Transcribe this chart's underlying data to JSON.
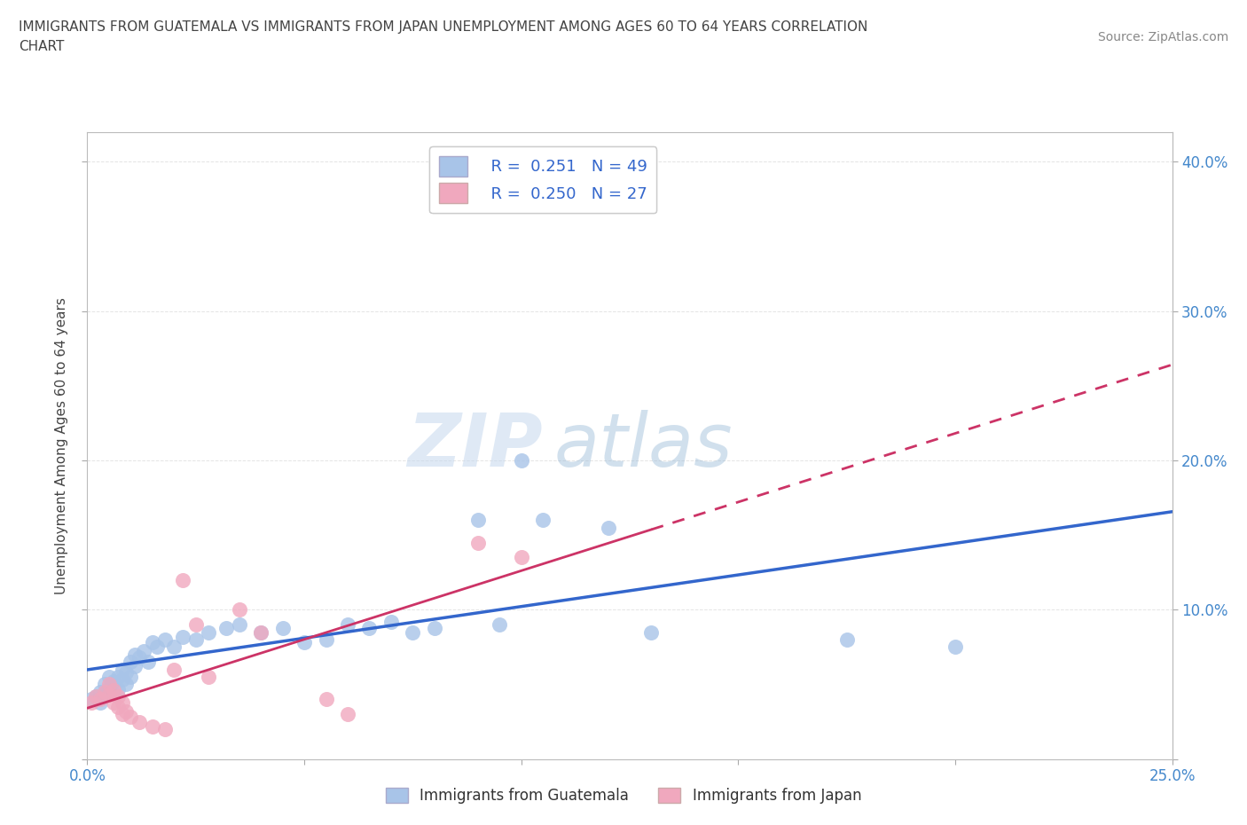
{
  "title_line1": "IMMIGRANTS FROM GUATEMALA VS IMMIGRANTS FROM JAPAN UNEMPLOYMENT AMONG AGES 60 TO 64 YEARS CORRELATION",
  "title_line2": "CHART",
  "source": "Source: ZipAtlas.com",
  "ylabel": "Unemployment Among Ages 60 to 64 years",
  "xlim": [
    0.0,
    0.25
  ],
  "ylim": [
    0.0,
    0.42
  ],
  "xtick_positions": [
    0.0,
    0.05,
    0.1,
    0.15,
    0.2,
    0.25
  ],
  "xticklabels_bottom": [
    "0.0%",
    "",
    "",
    "",
    "",
    "25.0%"
  ],
  "ytick_positions": [
    0.0,
    0.1,
    0.2,
    0.3,
    0.4
  ],
  "yticklabels_right": [
    "",
    "10.0%",
    "20.0%",
    "30.0%",
    "40.0%"
  ],
  "guatemala_color": "#a8c4e8",
  "japan_color": "#f0a8be",
  "trend_guatemala_color": "#3366cc",
  "trend_japan_color": "#cc3366",
  "R_guatemala": 0.251,
  "N_guatemala": 49,
  "R_japan": 0.25,
  "N_japan": 27,
  "watermark_zip": "ZIP",
  "watermark_atlas": "atlas",
  "background_color": "#ffffff",
  "grid_color": "#dddddd",
  "title_color": "#444444",
  "tick_color": "#4488cc",
  "legend_label_color": "#3366cc",
  "guatemala_x": [
    0.001,
    0.002,
    0.003,
    0.003,
    0.004,
    0.004,
    0.005,
    0.005,
    0.006,
    0.006,
    0.007,
    0.007,
    0.008,
    0.008,
    0.009,
    0.009,
    0.01,
    0.01,
    0.011,
    0.011,
    0.012,
    0.013,
    0.014,
    0.015,
    0.016,
    0.018,
    0.02,
    0.022,
    0.025,
    0.028,
    0.032,
    0.035,
    0.04,
    0.045,
    0.05,
    0.055,
    0.06,
    0.065,
    0.07,
    0.075,
    0.08,
    0.09,
    0.095,
    0.1,
    0.105,
    0.12,
    0.13,
    0.175,
    0.2
  ],
  "guatemala_y": [
    0.04,
    0.042,
    0.038,
    0.045,
    0.05,
    0.043,
    0.048,
    0.055,
    0.052,
    0.044,
    0.055,
    0.047,
    0.06,
    0.053,
    0.058,
    0.05,
    0.065,
    0.055,
    0.062,
    0.07,
    0.068,
    0.072,
    0.065,
    0.078,
    0.075,
    0.08,
    0.075,
    0.082,
    0.08,
    0.085,
    0.088,
    0.09,
    0.085,
    0.088,
    0.078,
    0.08,
    0.09,
    0.088,
    0.092,
    0.085,
    0.088,
    0.16,
    0.09,
    0.2,
    0.16,
    0.155,
    0.085,
    0.08,
    0.075
  ],
  "japan_x": [
    0.001,
    0.002,
    0.003,
    0.004,
    0.005,
    0.005,
    0.006,
    0.006,
    0.007,
    0.007,
    0.008,
    0.008,
    0.009,
    0.01,
    0.012,
    0.015,
    0.018,
    0.02,
    0.022,
    0.025,
    0.028,
    0.035,
    0.04,
    0.055,
    0.06,
    0.09,
    0.1
  ],
  "japan_y": [
    0.038,
    0.042,
    0.04,
    0.045,
    0.05,
    0.043,
    0.046,
    0.038,
    0.042,
    0.035,
    0.038,
    0.03,
    0.032,
    0.028,
    0.025,
    0.022,
    0.02,
    0.06,
    0.12,
    0.09,
    0.055,
    0.1,
    0.085,
    0.04,
    0.03,
    0.145,
    0.135
  ],
  "japan_trend_xmax": 0.13,
  "legend_box_color": "#ffffff",
  "legend_border_color": "#cccccc"
}
